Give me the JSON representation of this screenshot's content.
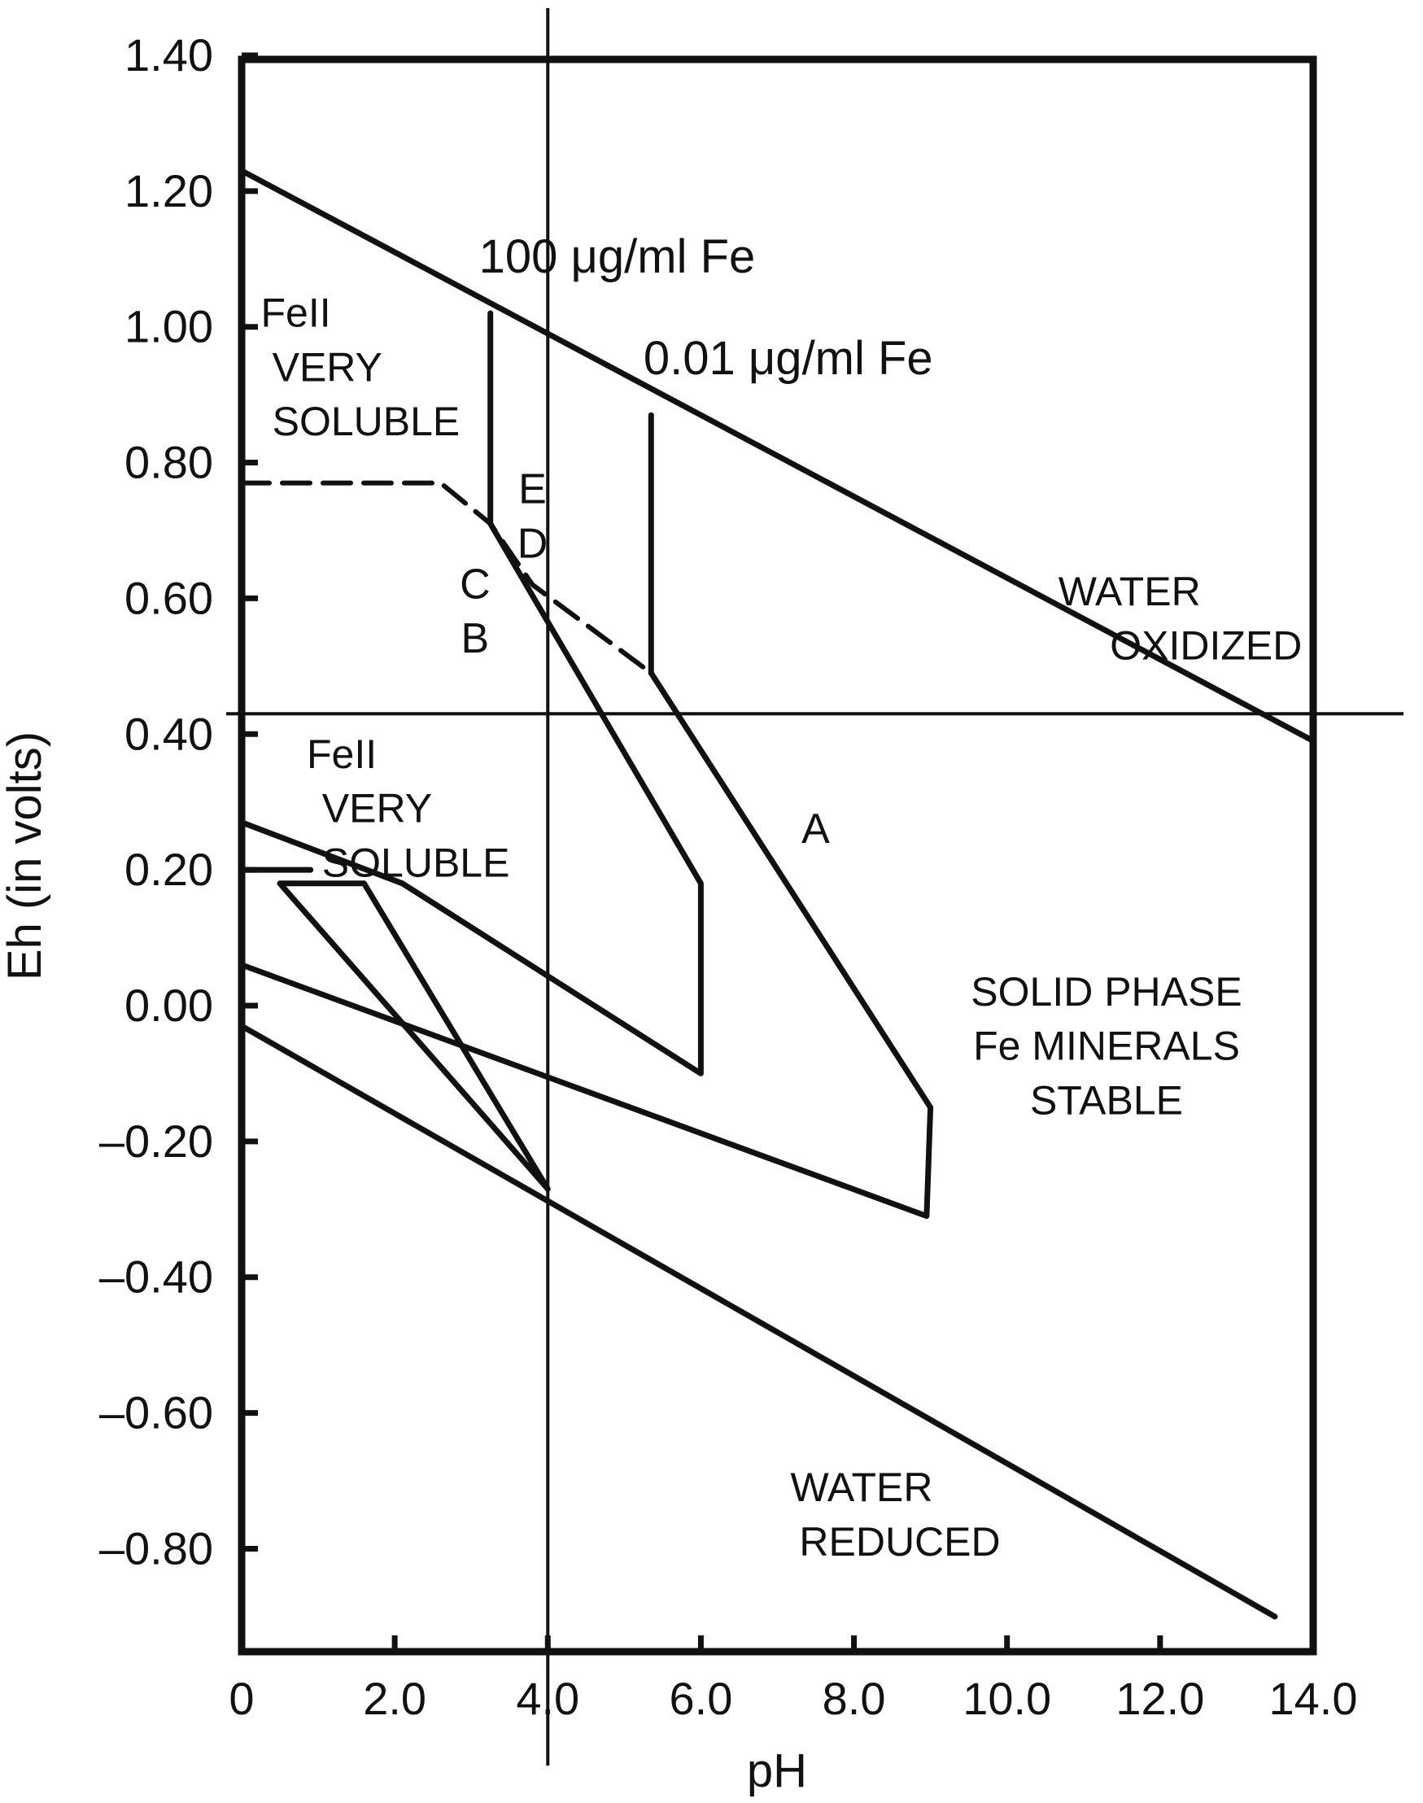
{
  "chart_data": {
    "type": "line",
    "title": "",
    "xlabel": "pH",
    "ylabel": "Eh (in volts)",
    "xlim": [
      0,
      14
    ],
    "ylim": [
      -0.9,
      1.4
    ],
    "grid": false,
    "x_ticks": [
      0,
      2,
      4,
      6,
      8,
      10,
      12,
      14
    ],
    "x_tick_labels": [
      "0",
      "2.0",
      "4.0",
      "6.0",
      "8.0",
      "10.0",
      "12.0",
      "14.0"
    ],
    "y_ticks": [
      1.4,
      1.2,
      1.0,
      0.8,
      0.6,
      0.4,
      0.2,
      0.0,
      -0.2,
      -0.4,
      -0.6,
      -0.8
    ],
    "y_tick_labels": [
      "1.40",
      "1.20",
      "1.00",
      "0.80",
      "0.60",
      "0.40",
      "0.20",
      "0.00",
      "–0.20",
      "–0.40",
      "–0.60",
      "–0.80"
    ],
    "reference_lines": {
      "vertical_ph": 4.0,
      "horizontal_eh": 0.43
    },
    "series": [
      {
        "id": "water-oxidized-boundary",
        "style": "solid",
        "x": [
          0,
          14
        ],
        "y": [
          1.23,
          0.39
        ]
      },
      {
        "id": "water-reduced-boundary",
        "style": "solid",
        "x": [
          0,
          13.5
        ],
        "y": [
          -0.03,
          -0.9
        ]
      },
      {
        "id": "fe-100-vertical",
        "style": "solid",
        "x": [
          3.25,
          3.25
        ],
        "y": [
          1.02,
          0.71
        ]
      },
      {
        "id": "fe-001-vertical",
        "style": "solid",
        "x": [
          5.35,
          5.35
        ],
        "y": [
          0.87,
          0.49
        ]
      },
      {
        "id": "fe-soluble-dashed",
        "style": "dashed",
        "x": [
          0,
          2.6,
          3.25,
          3.8,
          5.35
        ],
        "y": [
          0.77,
          0.77,
          0.71,
          0.62,
          0.49
        ]
      },
      {
        "id": "region-B-C",
        "style": "solid",
        "x": [
          3.25,
          6.0,
          6.0,
          2.1,
          0
        ],
        "y": [
          0.71,
          0.18,
          -0.1,
          0.18,
          0.27
        ]
      },
      {
        "id": "region-A",
        "style": "solid",
        "x": [
          5.35,
          9.0,
          8.95,
          0
        ],
        "y": [
          0.49,
          -0.15,
          -0.31,
          0.06
        ]
      },
      {
        "id": "inner-triangle",
        "style": "solid",
        "x": [
          0.5,
          1.6,
          4.0,
          0.5
        ],
        "y": [
          0.18,
          0.18,
          -0.27,
          0.18
        ]
      },
      {
        "id": "short-spur",
        "style": "solid",
        "x": [
          0,
          0.9
        ],
        "y": [
          0.2,
          0.2
        ]
      }
    ],
    "annotations": [
      {
        "id": "conc-100",
        "text": "100 μg/ml Fe",
        "x": 3.1,
        "y": 1.08
      },
      {
        "id": "conc-001",
        "text": "0.01 μg/ml Fe",
        "x": 5.25,
        "y": 0.93
      },
      {
        "id": "fell-top-1",
        "text": "FeII",
        "x": 0.25,
        "y": 1.0
      },
      {
        "id": "fell-top-2",
        "text": "VERY",
        "x": 0.4,
        "y": 0.92
      },
      {
        "id": "fell-top-3",
        "text": "SOLUBLE",
        "x": 0.4,
        "y": 0.84
      },
      {
        "id": "fell-bot-1",
        "text": "FeII",
        "x": 0.85,
        "y": 0.35
      },
      {
        "id": "fell-bot-2",
        "text": "VERY",
        "x": 1.05,
        "y": 0.27
      },
      {
        "id": "fell-bot-3",
        "text": "SOLUBLE",
        "x": 1.05,
        "y": 0.19
      },
      {
        "id": "mark-E",
        "text": "E",
        "x": 3.8,
        "y": 0.74
      },
      {
        "id": "mark-D",
        "text": "D",
        "x": 3.8,
        "y": 0.66
      },
      {
        "id": "mark-C",
        "text": "C",
        "x": 3.05,
        "y": 0.6
      },
      {
        "id": "mark-B",
        "text": "B",
        "x": 3.05,
        "y": 0.52
      },
      {
        "id": "mark-A",
        "text": "A",
        "x": 7.5,
        "y": 0.24
      },
      {
        "id": "water-ox-1",
        "text": "WATER",
        "x": 11.6,
        "y": 0.59
      },
      {
        "id": "water-ox-2",
        "text": "OXIDIZED",
        "x": 12.6,
        "y": 0.51
      },
      {
        "id": "solid-1",
        "text": "SOLID PHASE",
        "x": 11.3,
        "y": 0.0
      },
      {
        "id": "solid-2",
        "text": "Fe MINERALS",
        "x": 11.3,
        "y": -0.08
      },
      {
        "id": "solid-3",
        "text": "STABLE",
        "x": 11.3,
        "y": -0.16
      },
      {
        "id": "water-red-1",
        "text": "WATER",
        "x": 8.1,
        "y": -0.73
      },
      {
        "id": "water-red-2",
        "text": "REDUCED",
        "x": 8.6,
        "y": -0.81
      }
    ]
  }
}
